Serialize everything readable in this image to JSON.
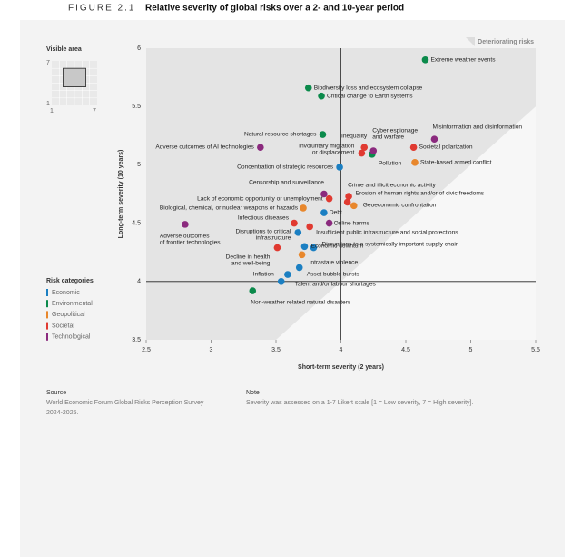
{
  "chart_data": {
    "type": "scatter",
    "figure_label": "FIGURE 2.1",
    "title": "Relative severity of global risks over a 2- and 10-year period",
    "x_label": "Short-term severity (2 years)",
    "y_label": "Long-term severity (10 years)",
    "annotation": "Deteriorating risks",
    "xlim": [
      2.5,
      5.5
    ],
    "ylim": [
      3.5,
      6
    ],
    "xticks": [
      2.5,
      3,
      3.5,
      4,
      4.5,
      5,
      5.5
    ],
    "yticks": [
      3.5,
      4,
      4.5,
      5,
      5.5,
      6
    ],
    "legend_title": "Risk categories",
    "series": [
      {
        "name": "Economic",
        "color": "#1b7fc2",
        "labels": [
          "Concentration of strategic resources",
          "Debt",
          "Disruptions to critical\ninfrastructure",
          "Disruptions to a systemically important supply chain",
          "Economic downturn",
          "Asset bubble bursts",
          "Inflation",
          "Talent and/or labour shortages"
        ],
        "x": [
          3.99,
          3.87,
          3.67,
          3.79,
          3.72,
          3.68,
          3.59,
          3.54
        ],
        "y": [
          4.98,
          4.59,
          4.42,
          4.29,
          4.3,
          4.12,
          4.06,
          4.0
        ]
      },
      {
        "name": "Environmental",
        "color": "#0b8a4b",
        "labels": [
          "Extreme weather events",
          "Biodiversity loss and ecosystem collapse",
          "Critical change to Earth systems",
          "Natural resource shortages",
          "Pollution",
          "Non-weather related natural disasters"
        ],
        "x": [
          4.65,
          3.75,
          3.85,
          3.86,
          4.24,
          3.32
        ],
        "y": [
          5.9,
          5.66,
          5.59,
          5.26,
          5.09,
          3.92
        ]
      },
      {
        "name": "Geopolitical",
        "color": "#e8872c",
        "labels": [
          "State-based armed conflict",
          "Geoeconomic confrontation",
          "Biological, chemical, or nuclear weapons or hazards",
          "Intrastate violence"
        ],
        "x": [
          4.57,
          4.1,
          3.71,
          3.7
        ],
        "y": [
          5.02,
          4.65,
          4.63,
          4.23
        ]
      },
      {
        "name": "Societal",
        "color": "#e03a31",
        "labels": [
          "Inequality",
          "Societal polarization",
          "Involuntary migration\nor displacement",
          "Lack of economic opportunity or unemployment",
          "Crime and illicit economic activity",
          "Erosion of human rights and/or of civic freedoms",
          "Infectious diseases",
          "Insufficient public infrastructure and social protections",
          "Decline in health\nand well-being"
        ],
        "x": [
          4.18,
          4.56,
          4.16,
          3.91,
          4.06,
          4.05,
          3.64,
          3.76,
          3.51
        ],
        "y": [
          5.15,
          5.15,
          5.1,
          4.71,
          4.73,
          4.68,
          4.5,
          4.47,
          4.29
        ]
      },
      {
        "name": "Technological",
        "color": "#8b2a7e",
        "labels": [
          "Misinformation and disinformation",
          "Adverse outcomes of AI technologies",
          "Cyber espionage\nand warfare",
          "Censorship and surveillance",
          "Online harms",
          "Adverse outcomes\nof frontier technologies"
        ],
        "x": [
          4.72,
          3.38,
          4.25,
          3.87,
          3.91,
          2.8
        ],
        "y": [
          5.22,
          5.15,
          5.12,
          4.75,
          4.5,
          4.49
        ]
      }
    ]
  },
  "inset": {
    "title": "Visible area",
    "xlim": [
      1,
      7
    ],
    "ylim": [
      1,
      7
    ]
  },
  "source": {
    "title": "Source",
    "text": "World Economic Forum Global Risks Perception Survey\n2024-2025."
  },
  "note": {
    "title": "Note",
    "text": "Severity was assessed on a 1-7 Likert scale [1 = Low severity, 7 = High severity]."
  }
}
